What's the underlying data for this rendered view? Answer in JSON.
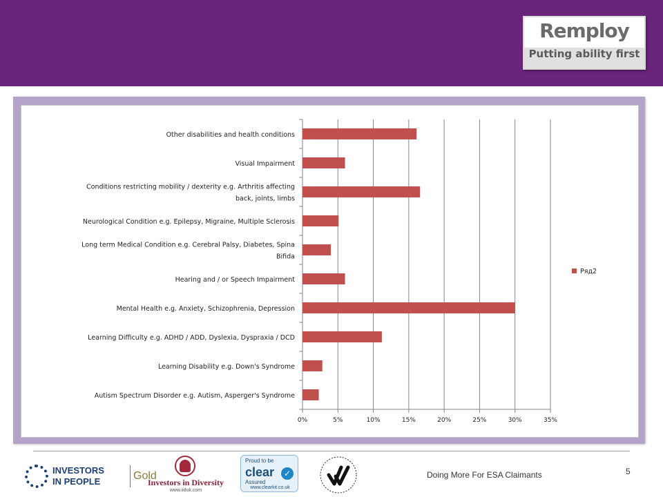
{
  "header": {
    "brand_name": "Remploy",
    "brand_tagline": "Putting ability first"
  },
  "footer": {
    "title": "Doing More For ESA Claimants",
    "page_number": "5",
    "logos": {
      "investors_in_people": "INVESTORS IN PEOPLE",
      "investors_in_people_line1": "INVESTORS",
      "investors_in_people_line2": "IN PEOPLE",
      "investors_in_people_level": "Gold",
      "investors_in_diversity": "Investors in Diversity",
      "investors_in_diversity_url": "www.iiduk.com",
      "clear_top": "Proud to be",
      "clear_name": "clear",
      "clear_sub": "Assured",
      "clear_url": "www.clearkit.co.uk",
      "positive_about_disabled_people": "POSITIVE ABOUT DISABLED PEOPLE"
    }
  },
  "colors": {
    "header": "#69257a",
    "frame": "#b4a3c9",
    "bar": "#c0504d",
    "grid": "#868686"
  },
  "chart_data": {
    "type": "bar",
    "orientation": "horizontal",
    "categories": [
      "Other disabilities and health conditions",
      "Visual Impairment",
      "Conditions restricting mobility / dexterity e.g. Arthritis affecting back, joints, limbs",
      "Neurological Condition e.g. Epilepsy, Migraine, Multiple Sclerosis",
      "Long term Medical Condition e.g. Cerebral Palsy, Diabetes, Spina Bifida",
      "Hearing and / or Speech Impairment",
      "Mental Health e.g. Anxiety, Schizophrenia, Depression",
      "Learning Difficulty e.g. ADHD / ADD, Dyslexia, Dyspraxia / DCD",
      "Learning Disability e.g. Down's Syndrome",
      "Autism Spectrum Disorder e.g. Autism, Asperger's Syndrome"
    ],
    "category_lines": [
      [
        "Other disabilities and health conditions"
      ],
      [
        "Visual Impairment"
      ],
      [
        "Conditions restricting mobility / dexterity e.g. Arthritis affecting",
        "back, joints, limbs"
      ],
      [
        "Neurological Condition e.g. Epilepsy, Migraine, Multiple Sclerosis"
      ],
      [
        "Long term Medical Condition e.g. Cerebral Palsy, Diabetes, Spina",
        "Bifida"
      ],
      [
        "Hearing and / or Speech Impairment"
      ],
      [
        "Mental Health e.g. Anxiety, Schizophrenia, Depression"
      ],
      [
        "Learning Difficulty e.g. ADHD / ADD, Dyslexia, Dyspraxia / DCD"
      ],
      [
        "Learning Disability e.g. Down's Syndrome"
      ],
      [
        "Autism Spectrum Disorder e.g. Autism, Asperger's Syndrome"
      ]
    ],
    "series": [
      {
        "name": "Ряд2",
        "values": [
          16.1,
          6.0,
          16.6,
          5.1,
          4.0,
          6.0,
          30.0,
          11.2,
          2.8,
          2.3
        ]
      }
    ],
    "xlim": [
      0,
      35
    ],
    "x_ticks": [
      0,
      5,
      10,
      15,
      20,
      25,
      30,
      35
    ],
    "x_tick_labels": [
      "0%",
      "5%",
      "10%",
      "15%",
      "20%",
      "25%",
      "30%",
      "35%"
    ],
    "value_unit": "%",
    "grid": "vertical",
    "legend_position": "right",
    "title": "",
    "xlabel": "",
    "ylabel": ""
  }
}
